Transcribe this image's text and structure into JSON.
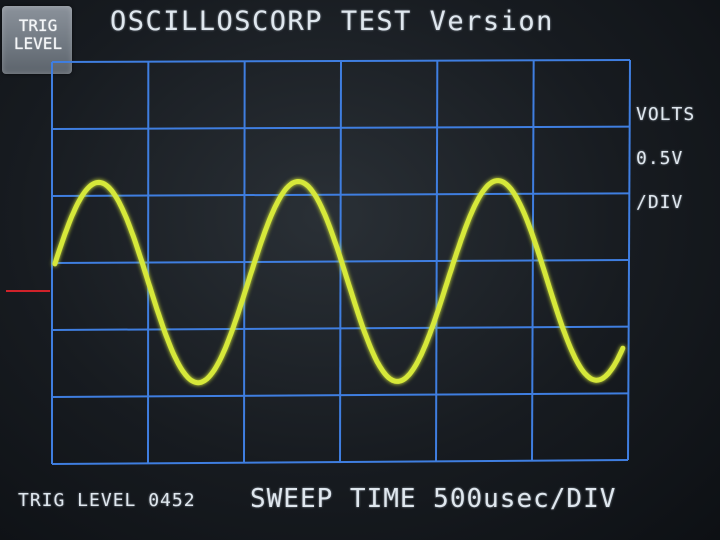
{
  "header": {
    "title": "OSCILLOSCORP TEST Version",
    "trig_button": {
      "line1": "TRIG",
      "line2": "LEVEL"
    }
  },
  "volts_panel": {
    "line1": "VOLTS",
    "line2": "0.5V",
    "line3": "/DIV"
  },
  "footer": {
    "trig_level": "TRIG LEVEL 0452",
    "sweep_time": "SWEEP TIME 500usec/DIV"
  },
  "colors": {
    "grid": "#3f7ee0",
    "trace": "#d6e83a",
    "trigger_marker": "#d0222a",
    "text": "#dfe7ee"
  },
  "display": {
    "h_divisions": 6,
    "v_divisions": 6,
    "volts_per_div": 0.5,
    "sweep_usec_per_div": 500,
    "signal": {
      "type": "sine",
      "cycles_on_screen": 2.85,
      "amplitude_div": 1.5,
      "offset_div": -0.3,
      "start_phase_deg": 11
    }
  }
}
